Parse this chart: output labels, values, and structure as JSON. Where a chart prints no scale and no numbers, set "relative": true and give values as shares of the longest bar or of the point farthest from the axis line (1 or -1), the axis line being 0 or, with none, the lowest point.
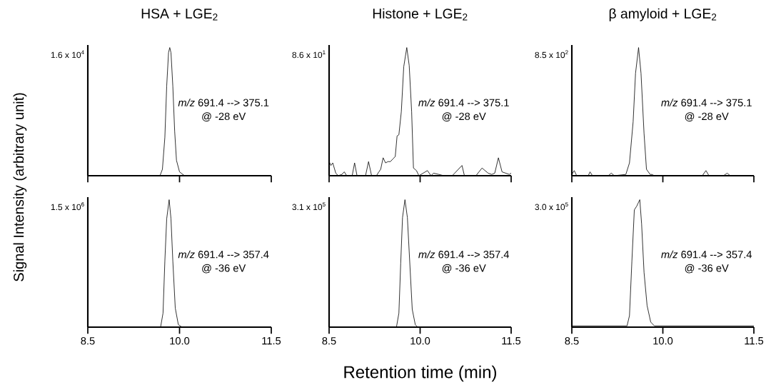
{
  "chart_data": [
    {
      "type": "line",
      "relative": true,
      "title": "HSA + LGE$_{2}$",
      "ylabel": "Signal Intensity (arbitrary unit)",
      "annotations": [
        "1.6 x 10$^{4}$",
        "*m/z* 691.4 --> 375.1",
        "@ -28 eV"
      ],
      "xlim": [
        8.5,
        11.5
      ],
      "xticks": [
        {
          "value": 8.5,
          "label": null
        },
        {
          "value": 10,
          "label": null
        },
        {
          "value": 11.5,
          "label": null
        }
      ],
      "tick_labels": false,
      "line_style": "solid",
      "color": "#000000",
      "x": [
        8.5,
        9.68,
        9.72,
        9.76,
        9.79,
        9.82,
        9.84,
        9.86,
        9.89,
        9.92,
        9.95,
        10.0,
        10.08,
        11.5
      ],
      "values": [
        0,
        0,
        0.05,
        0.3,
        0.7,
        0.96,
        1,
        0.96,
        0.7,
        0.35,
        0.12,
        0.03,
        0,
        0
      ]
    },
    {
      "type": "line",
      "relative": true,
      "title": "Histone + LGE$_{2}$",
      "annotations": [
        "8.6 x 10$^{1}$",
        "*m/z* 691.4 --> 375.1",
        "@ -28 eV"
      ],
      "xlim": [
        8.5,
        11.5
      ],
      "xticks": [
        {
          "value": 8.5,
          "label": null
        },
        {
          "value": 10,
          "label": null
        },
        {
          "value": 11.5,
          "label": null
        }
      ],
      "tick_labels": false,
      "line_style": "solid",
      "color": "#000000",
      "x": [
        8.5,
        8.53,
        8.56,
        8.61,
        8.65,
        8.71,
        8.75,
        8.79,
        8.88,
        8.92,
        8.96,
        9.1,
        9.15,
        9.2,
        9.28,
        9.32,
        9.35,
        9.39,
        9.43,
        9.47,
        9.51,
        9.55,
        9.59,
        9.62,
        9.65,
        9.69,
        9.73,
        9.78,
        9.82,
        9.86,
        9.89,
        9.94,
        9.98,
        10.12,
        10.18,
        10.22,
        10.31,
        10.39,
        10.53,
        10.61,
        10.69,
        10.73,
        10.92,
        11.02,
        11.12,
        11.18,
        11.23,
        11.29,
        11.35,
        11.47,
        11.5
      ],
      "values": [
        0.11,
        0.08,
        0.1,
        0.02,
        0,
        0.01,
        0.03,
        0,
        0,
        0.1,
        0,
        0,
        0.11,
        0,
        0,
        0.03,
        0.05,
        0.14,
        0.1,
        0.11,
        0.11,
        0.13,
        0.15,
        0.31,
        0.32,
        0.5,
        0.85,
        1,
        0.86,
        0.5,
        0.06,
        0.04,
        0,
        0.04,
        0,
        0.02,
        0.01,
        0,
        0,
        0.04,
        0.08,
        0,
        0,
        0.06,
        0.02,
        0.01,
        0.02,
        0.14,
        0.03,
        0.01,
        0.02
      ]
    },
    {
      "type": "line",
      "relative": true,
      "title": "β amyloid + LGE$_{2}$",
      "annotations": [
        "8.5 x 10$^{2}$",
        "*m/z* 691.4 --> 375.1",
        "@ -28 eV"
      ],
      "xlim": [
        8.5,
        11.5
      ],
      "xticks": [
        {
          "value": 8.5,
          "label": null
        },
        {
          "value": 10,
          "label": null
        },
        {
          "value": 11.5,
          "label": null
        }
      ],
      "tick_labels": false,
      "line_style": "solid",
      "color": "#000000",
      "x": [
        8.5,
        8.54,
        8.58,
        8.77,
        8.8,
        8.84,
        9.1,
        9.15,
        9.2,
        9.39,
        9.45,
        9.51,
        9.55,
        9.6,
        9.64,
        9.69,
        9.73,
        9.79,
        9.82,
        9.86,
        10.65,
        10.71,
        10.76,
        11.0,
        11.06,
        11.11
      ],
      "values": [
        0.01,
        0.04,
        0,
        0,
        0.03,
        0,
        0,
        0.02,
        0,
        0.01,
        0.1,
        0.42,
        0.8,
        1,
        0.8,
        0.33,
        0.05,
        0.01,
        0.01,
        0,
        0,
        0.04,
        0,
        0,
        0.02,
        0
      ]
    },
    {
      "type": "line",
      "relative": true,
      "annotations": [
        "1.5 x 10$^{6}$",
        "*m/z* 691.4 --> 357.4",
        "@ -36 eV"
      ],
      "xlim": [
        8.5,
        11.5
      ],
      "xticks": [
        {
          "value": 8.5,
          "label": "8.5"
        },
        {
          "value": 10,
          "label": "10.0"
        },
        {
          "value": 11.5,
          "label": "11.5"
        }
      ],
      "tick_labels": "x",
      "line_style": "solid",
      "color": "#000000",
      "x": [
        8.5,
        9.69,
        9.73,
        9.76,
        9.79,
        9.83,
        9.86,
        9.89,
        9.93,
        9.98,
        10.04,
        11.5
      ],
      "values": [
        0,
        0,
        0.11,
        0.52,
        0.85,
        1,
        0.85,
        0.52,
        0.15,
        0.02,
        0,
        0
      ]
    },
    {
      "type": "line",
      "relative": true,
      "xlabel": "Retention time (min)",
      "annotations": [
        "3.1 x 10$^{5}$",
        "*m/z* 691.4 --> 357.4",
        "@ -36 eV"
      ],
      "xlim": [
        8.5,
        11.5
      ],
      "xticks": [
        {
          "value": 8.5,
          "label": "8.5"
        },
        {
          "value": 10,
          "label": "10.0"
        },
        {
          "value": 11.5,
          "label": "11.5"
        }
      ],
      "tick_labels": "x",
      "line_style": "solid",
      "color": "#000000",
      "x": [
        8.5,
        9.61,
        9.65,
        9.68,
        9.71,
        9.75,
        9.79,
        9.83,
        9.87,
        9.92,
        9.96,
        11.5
      ],
      "values": [
        0,
        0,
        0.11,
        0.5,
        0.86,
        1,
        0.86,
        0.5,
        0.14,
        0.02,
        0,
        0
      ]
    },
    {
      "type": "line",
      "relative": true,
      "annotations": [
        "3.0 x 10$^{5}$",
        "*m/z* 691.4 --> 357.4",
        "@ -36 eV"
      ],
      "xlim": [
        8.5,
        11.5
      ],
      "xticks": [
        {
          "value": 8.5,
          "label": "8.5"
        },
        {
          "value": 10,
          "label": "10.0"
        },
        {
          "value": 11.5,
          "label": "11.5"
        }
      ],
      "tick_labels": "x",
      "line_style": "solid",
      "color": "#000000",
      "x": [
        8.5,
        9.41,
        9.45,
        9.49,
        9.53,
        9.57,
        9.62,
        9.65,
        9.69,
        9.74,
        9.8,
        9.86,
        11.5
      ],
      "values": [
        0.01,
        0.01,
        0.09,
        0.52,
        0.92,
        0.95,
        1,
        0.81,
        0.43,
        0.17,
        0.04,
        0.01,
        0.01
      ]
    }
  ]
}
